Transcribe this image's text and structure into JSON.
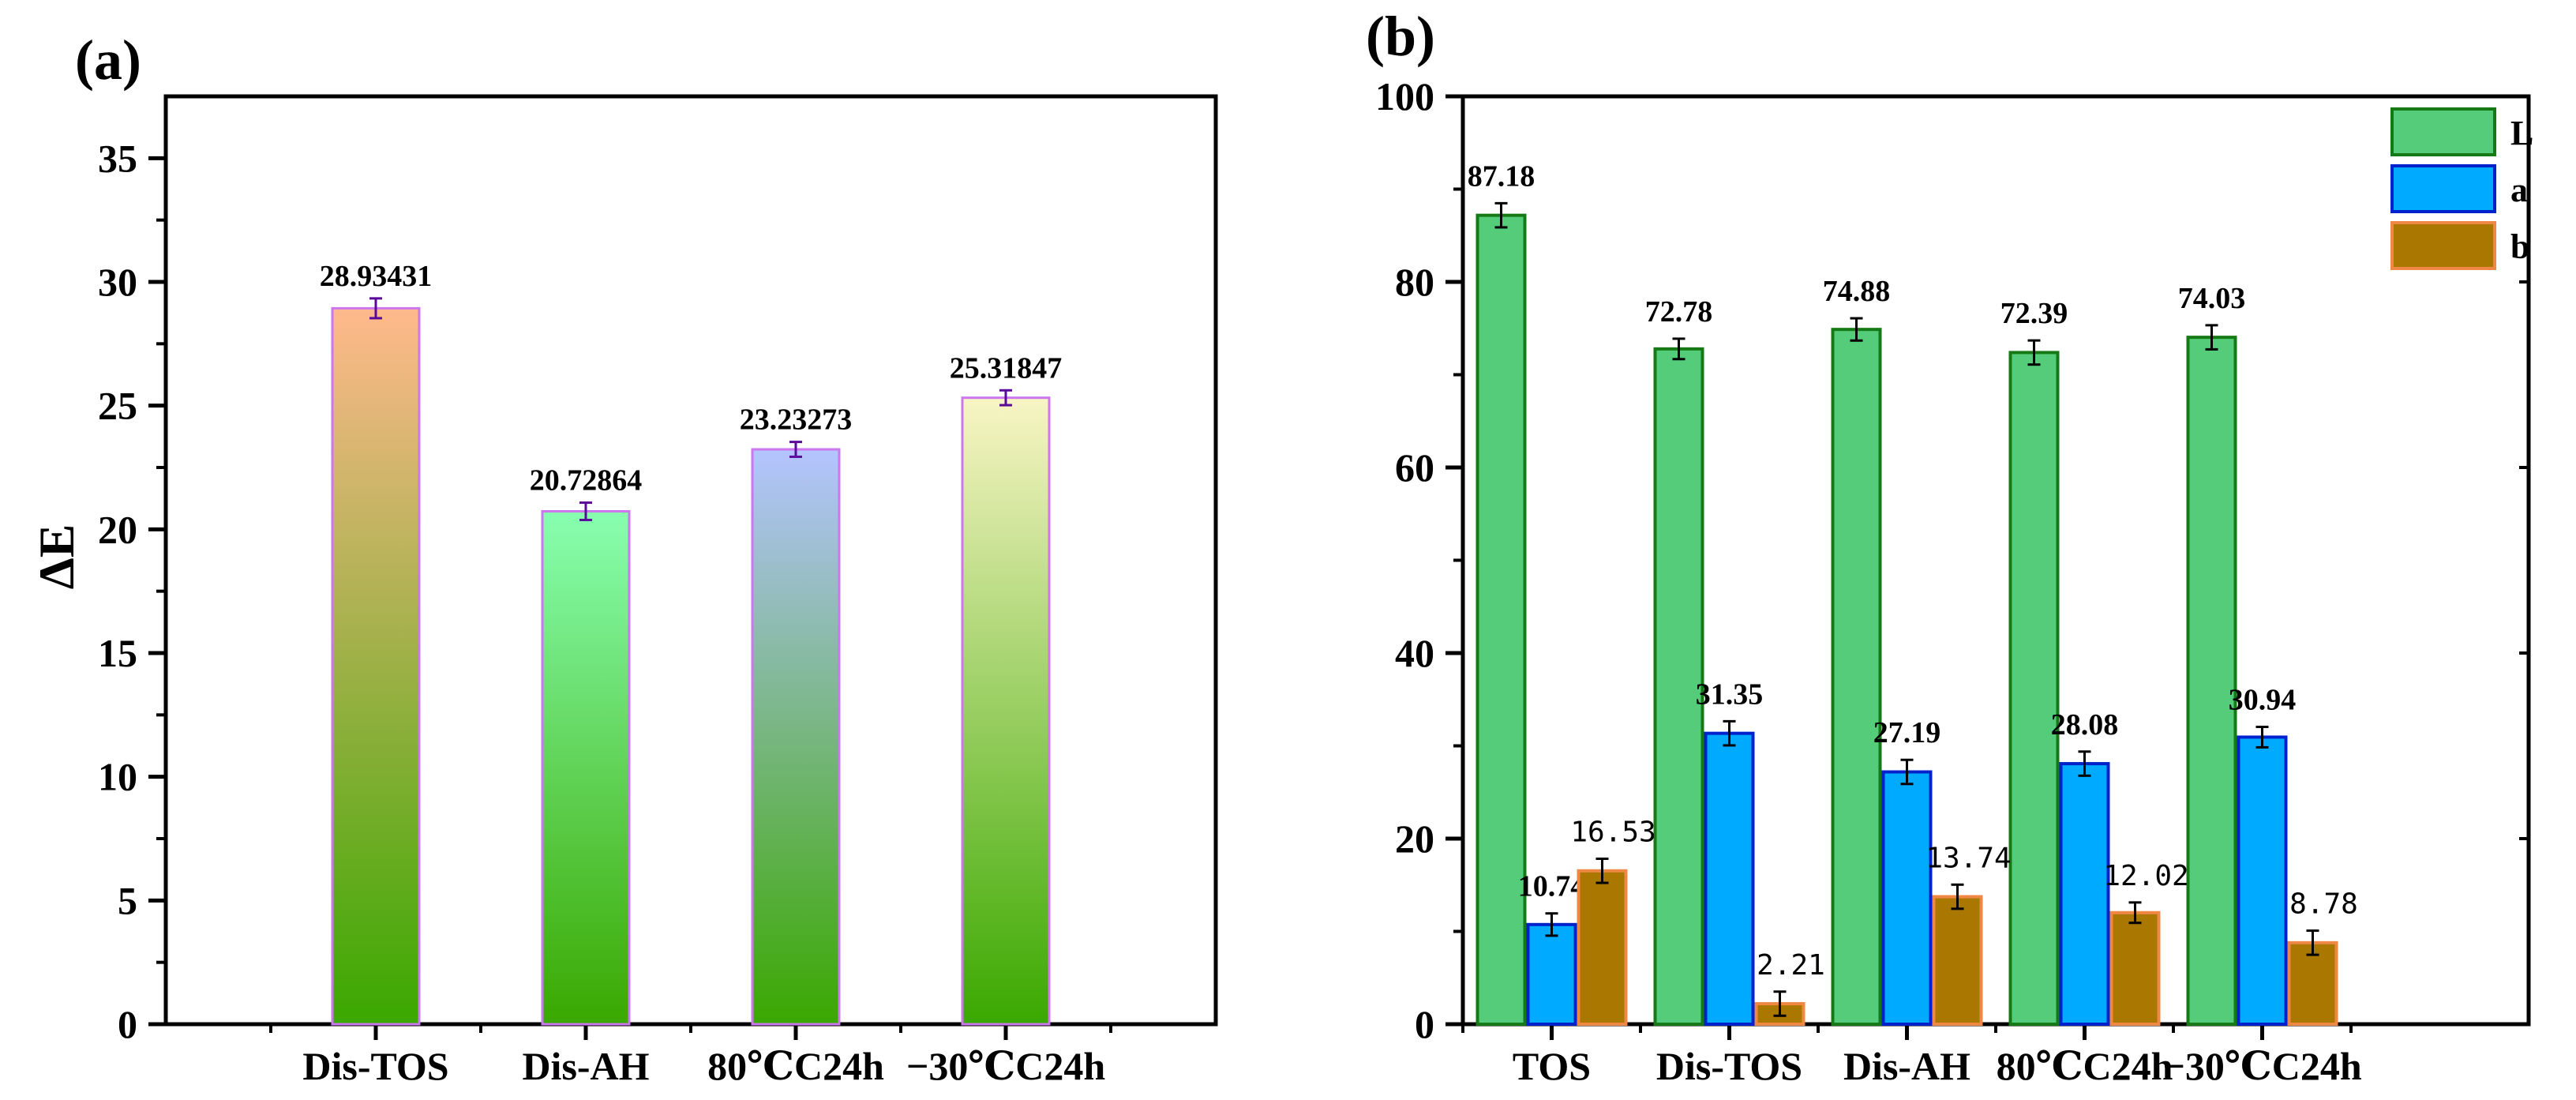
{
  "chart_data": [
    {
      "panel_label": "(a)",
      "type": "bar",
      "ylabel": "ΔE",
      "xlabel": "",
      "ylim": [
        0,
        37.5
      ],
      "yticks": [
        0,
        5,
        10,
        15,
        20,
        25,
        30,
        35
      ],
      "categories": [
        "Dis-TOS",
        "Dis-AH",
        "80℃C24h",
        "−30℃C24h"
      ],
      "values": [
        28.93431,
        20.72864,
        23.23273,
        25.31847
      ],
      "errors": [
        0.4,
        0.35,
        0.3,
        0.3
      ],
      "labels": [
        "28.93431",
        "20.72864",
        "23.23273",
        "25.31847"
      ],
      "bar_gradients": [
        {
          "top": "#ffb98c",
          "bottom": "#3aa800",
          "border": "#cc77ee"
        },
        {
          "top": "#88ffb0",
          "bottom": "#3aa800",
          "border": "#cc77ee"
        },
        {
          "top": "#b4c4ff",
          "bottom": "#3aa800",
          "border": "#cc77ee"
        },
        {
          "top": "#f8f5c4",
          "bottom": "#3aa800",
          "border": "#cc77ee"
        }
      ],
      "error_color": "#5a0a9a",
      "grid": false
    },
    {
      "panel_label": "(b)",
      "type": "bar",
      "xlabel": "",
      "ylabel": "",
      "ylim": [
        0,
        100
      ],
      "yticks": [
        0,
        20,
        40,
        60,
        80,
        100
      ],
      "categories": [
        "TOS",
        "Dis-TOS",
        "Dis-AH",
        "80℃C24h",
        "−30℃C24h"
      ],
      "legend_position": "top-right",
      "series": [
        {
          "name": "L",
          "values": [
            87.18,
            72.78,
            74.88,
            72.39,
            74.03
          ],
          "errors": [
            1.3,
            1.1,
            1.2,
            1.3,
            1.3
          ],
          "labels": [
            "87.18",
            "72.78",
            "74.88",
            "72.39",
            "74.03"
          ],
          "fill": "#55cc7a",
          "border": "#157a15",
          "label_style": "bold"
        },
        {
          "name": "a",
          "values": [
            10.74,
            31.35,
            27.19,
            28.08,
            30.94
          ],
          "errors": [
            1.2,
            1.3,
            1.3,
            1.3,
            1.1
          ],
          "labels": [
            "10.74",
            "31.35",
            "27.19",
            "28.08",
            "30.94"
          ],
          "fill": "#00aaff",
          "border": "#0022cc",
          "label_style": "bold"
        },
        {
          "name": "b",
          "values": [
            16.53,
            2.21,
            13.74,
            12.02,
            8.78
          ],
          "errors": [
            1.3,
            1.3,
            1.3,
            1.1,
            1.3
          ],
          "labels": [
            "16.53",
            "2.21",
            "13.74",
            "12.02",
            "8.78"
          ],
          "fill": "#aa7700",
          "border": "#ee8844",
          "label_style": "mono"
        }
      ],
      "grid": false
    }
  ]
}
